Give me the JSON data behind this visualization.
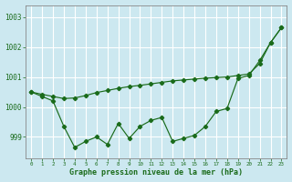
{
  "title": "Graphe pression niveau de la mer (hPa)",
  "background_color": "#cce8f0",
  "grid_color": "#ffffff",
  "line_color": "#1a6b1a",
  "x_labels": [
    "0",
    "1",
    "2",
    "3",
    "4",
    "5",
    "6",
    "7",
    "8",
    "9",
    "10",
    "11",
    "12",
    "13",
    "14",
    "15",
    "16",
    "17",
    "18",
    "19",
    "20",
    "21",
    "22",
    "23"
  ],
  "ylim": [
    998.3,
    1003.4
  ],
  "yticks": [
    999,
    1000,
    1001,
    1002,
    1003
  ],
  "series_jagged": [
    1000.5,
    1000.35,
    1000.2,
    999.35,
    998.65,
    998.85,
    999.0,
    998.75,
    999.45,
    998.95,
    999.35,
    999.55,
    999.65,
    998.85,
    998.95,
    999.05,
    999.35,
    999.85,
    999.95,
    1000.95,
    1001.05,
    1001.55,
    1002.15,
    1002.65
  ],
  "series_trend": [
    1000.5,
    1000.42,
    1000.35,
    1000.28,
    1000.3,
    1000.38,
    1000.48,
    1000.55,
    1000.62,
    1000.68,
    1000.72,
    1000.77,
    1000.82,
    1000.87,
    1000.9,
    1000.93,
    1000.96,
    1000.98,
    1001.0,
    1001.05,
    1001.1,
    1001.45,
    1002.15,
    1002.65
  ],
  "figsize": [
    3.2,
    2.0
  ],
  "dpi": 100
}
